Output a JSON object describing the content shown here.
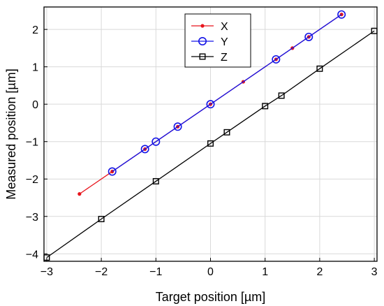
{
  "chart_data": {
    "type": "line",
    "title": "",
    "xlabel": "Target position [µm]",
    "ylabel": "Measured position [µm]",
    "xlim": [
      -3.05,
      3.05
    ],
    "ylim": [
      -4.2,
      2.6
    ],
    "xticks": [
      -3,
      -2,
      -1,
      0,
      1,
      2,
      3
    ],
    "yticks": [
      -4,
      -3,
      -2,
      -1,
      0,
      1,
      2
    ],
    "grid": true,
    "legend_position": "top-center",
    "series": [
      {
        "name": "X",
        "color": "#e8141c",
        "marker": "dot",
        "points": [
          [
            -2.4,
            -2.4
          ],
          [
            -1.8,
            -1.8
          ],
          [
            -1.2,
            -1.2
          ],
          [
            -0.6,
            -0.6
          ],
          [
            0,
            0
          ],
          [
            0.6,
            0.6
          ],
          [
            1.2,
            1.2
          ],
          [
            1.5,
            1.5
          ],
          [
            1.8,
            1.8
          ],
          [
            2.4,
            2.4
          ]
        ]
      },
      {
        "name": "Y",
        "color": "#1414e6",
        "marker": "circle",
        "points": [
          [
            -1.8,
            -1.8
          ],
          [
            -1.2,
            -1.2
          ],
          [
            -1.0,
            -1.0
          ],
          [
            -0.6,
            -0.6
          ],
          [
            0,
            0
          ],
          [
            1.2,
            1.2
          ],
          [
            1.8,
            1.8
          ],
          [
            2.4,
            2.4
          ]
        ]
      },
      {
        "name": "Z",
        "color": "#000000",
        "marker": "square",
        "points": [
          [
            -3,
            -4.1
          ],
          [
            -2,
            -3.07
          ],
          [
            -1,
            -2.06
          ],
          [
            0,
            -1.05
          ],
          [
            0.3,
            -0.75
          ],
          [
            1,
            -0.05
          ],
          [
            1.3,
            0.23
          ],
          [
            2,
            0.95
          ],
          [
            3,
            1.96
          ]
        ]
      }
    ]
  }
}
